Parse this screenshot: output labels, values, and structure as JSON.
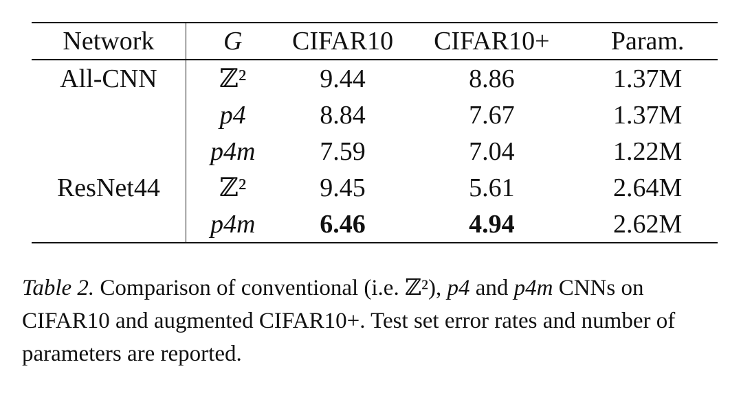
{
  "table": {
    "headers": [
      "Network",
      "G",
      "CIFAR10",
      "CIFAR10+",
      "Param."
    ],
    "rows": [
      {
        "network": "All-CNN",
        "g": "ℤ²",
        "cifar10": "9.44",
        "cifar10p": "8.86",
        "param": "1.37M"
      },
      {
        "network": "",
        "g": "p4",
        "cifar10": "8.84",
        "cifar10p": "7.67",
        "param": "1.37M"
      },
      {
        "network": "",
        "g": "p4m",
        "cifar10": "7.59",
        "cifar10p": "7.04",
        "param": "1.22M"
      },
      {
        "network": "ResNet44",
        "g": "ℤ²",
        "cifar10": "9.45",
        "cifar10p": "5.61",
        "param": "2.64M"
      },
      {
        "network": "",
        "g": "p4m",
        "cifar10": "6.46",
        "cifar10p": "4.94",
        "param": "2.62M"
      }
    ]
  },
  "caption": {
    "label": "Table 2.",
    "part1": " Comparison of conventional (i.e. ",
    "z2": "ℤ²",
    "part2": "), ",
    "p4": "p4",
    "part3": " and ",
    "p4m": "p4m",
    "part4": " CNNs on CIFAR10 and augmented CIFAR10+. Test set error rates and number of parameters are reported."
  }
}
